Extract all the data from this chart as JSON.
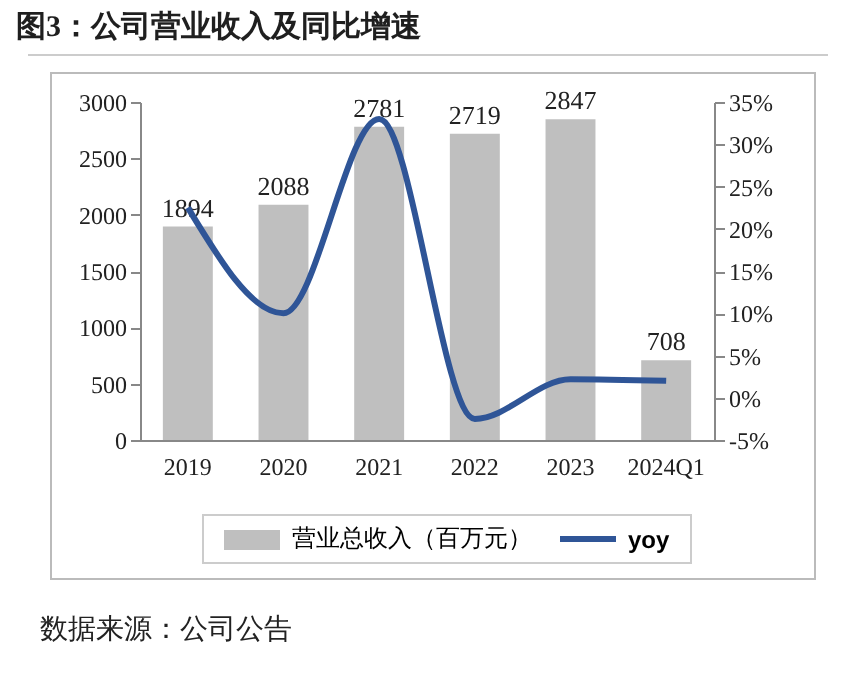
{
  "chart_data": {
    "type": "bar",
    "title": "图3：公司营业收入及同比增速",
    "categories": [
      "2019",
      "2020",
      "2021",
      "2022",
      "2023",
      "2024Q1"
    ],
    "series": [
      {
        "name": "营业总收入（百万元）",
        "color": "#bfbfbf",
        "values": [
          1894,
          2088,
          2781,
          2719,
          2847,
          708
        ],
        "value_labels": [
          "1894",
          "2088",
          "2781",
          "2719",
          "2847",
          "708"
        ]
      },
      {
        "name": "yoy",
        "type": "line",
        "axis": "y2",
        "color": "#2f5597",
        "values": [
          22.5,
          10,
          33,
          -2.5,
          2.2,
          2
        ]
      }
    ],
    "ylim": [
      0,
      3000
    ],
    "yticks": [
      0,
      500,
      1000,
      1500,
      2000,
      2500,
      3000
    ],
    "y2lim": [
      -5,
      35
    ],
    "y2ticks": [
      {
        "value": -5,
        "label": "-5%"
      },
      {
        "value": 0,
        "label": "0%"
      },
      {
        "value": 5,
        "label": "5%"
      },
      {
        "value": 10,
        "label": "10%"
      },
      {
        "value": 15,
        "label": "15%"
      },
      {
        "value": 20,
        "label": "20%"
      },
      {
        "value": 25,
        "label": "25%"
      },
      {
        "value": 30,
        "label": "30%"
      },
      {
        "value": 35,
        "label": "35%"
      }
    ],
    "legend": "bottom",
    "grid": false,
    "marker": "none",
    "annotations": [
      "数据来源：公司公告"
    ]
  }
}
